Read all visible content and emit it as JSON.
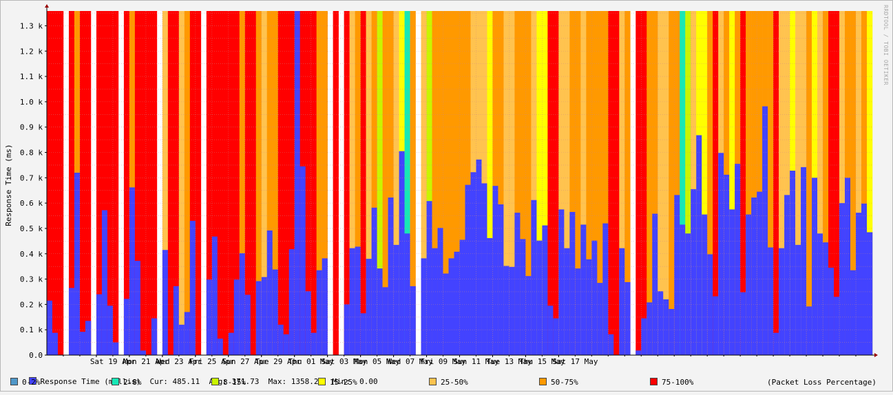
{
  "chart_data": {
    "type": "bar",
    "ylabel": "Response Time (ms)",
    "ylim": [
      0,
      1358.26
    ],
    "y_ticks": [
      "0.0",
      "0.1 k",
      "0.2 k",
      "0.3 k",
      "0.4 k",
      "0.5 k",
      "0.6 k",
      "0.7 k",
      "0.8 k",
      "0.9 k",
      "1.0 k",
      "1.1 k",
      "1.2 k",
      "1.3 k"
    ],
    "x_ticks": [
      "Sat 19 Apr",
      "Mon 21 Apr",
      "Wed 23 Apr",
      "Fri 25 Apr",
      "Sun 27 Apr",
      "Tue 29 Apr",
      "Thu 01 May",
      "Sat 03 May",
      "Mon 05 May",
      "Wed 07 May",
      "Fri 09 May",
      "Sun 11 May",
      "Tue 13 May",
      "Thu 15 May",
      "Sat 17 May"
    ],
    "grid": true,
    "side_label": "RRDTOOL / TOBI OETIKER",
    "loss_colors": {
      "0-2%": "#4f97c8",
      "2-8%": "#17e8b6",
      "8-15%": "#c9f500",
      "15-25%": "#ffff00",
      "25-50%": "#ffc34f",
      "50-75%": "#ff9900",
      "75-100%": "#ff0000"
    },
    "response_color": "#4343ff",
    "bin_hours": 8,
    "bins": [
      {
        "rt": 215,
        "loss": "75-100%"
      },
      {
        "rt": 88,
        "loss": "75-100%"
      },
      {
        "rt": 0,
        "loss": "75-100%"
      },
      {
        "rt": null,
        "loss": null
      },
      {
        "rt": 265,
        "loss": "75-100%"
      },
      {
        "rt": 720,
        "loss": "50-75%"
      },
      {
        "rt": 92,
        "loss": "75-100%"
      },
      {
        "rt": 135,
        "loss": "75-100%"
      },
      {
        "rt": null,
        "loss": null
      },
      {
        "rt": 240,
        "loss": "75-100%"
      },
      {
        "rt": 572,
        "loss": "75-100%"
      },
      {
        "rt": 195,
        "loss": "75-100%"
      },
      {
        "rt": 50,
        "loss": "75-100%"
      },
      {
        "rt": null,
        "loss": null
      },
      {
        "rt": 222,
        "loss": "75-100%"
      },
      {
        "rt": 662,
        "loss": "50-75%"
      },
      {
        "rt": 372,
        "loss": "75-100%"
      },
      {
        "rt": 18,
        "loss": "75-100%"
      },
      {
        "rt": 0,
        "loss": "75-100%"
      },
      {
        "rt": 145,
        "loss": "75-100%"
      },
      {
        "rt": null,
        "loss": null
      },
      {
        "rt": 415,
        "loss": "25-50%"
      },
      {
        "rt": 0,
        "loss": "75-100%"
      },
      {
        "rt": 272,
        "loss": "75-100%"
      },
      {
        "rt": 120,
        "loss": "25-50%"
      },
      {
        "rt": 170,
        "loss": "50-75%"
      },
      {
        "rt": 530,
        "loss": "75-100%"
      },
      {
        "rt": 0,
        "loss": "75-100%"
      },
      {
        "rt": null,
        "loss": null
      },
      {
        "rt": 298,
        "loss": "75-100%"
      },
      {
        "rt": 468,
        "loss": "75-100%"
      },
      {
        "rt": 65,
        "loss": "75-100%"
      },
      {
        "rt": 0,
        "loss": "75-100%"
      },
      {
        "rt": 88,
        "loss": "75-100%"
      },
      {
        "rt": 298,
        "loss": "75-100%"
      },
      {
        "rt": 402,
        "loss": "50-75%"
      },
      {
        "rt": 238,
        "loss": "75-100%"
      },
      {
        "rt": 0,
        "loss": "75-100%"
      },
      {
        "rt": 292,
        "loss": "50-75%"
      },
      {
        "rt": 308,
        "loss": "25-50%"
      },
      {
        "rt": 492,
        "loss": "50-75%"
      },
      {
        "rt": 338,
        "loss": "50-75%"
      },
      {
        "rt": 120,
        "loss": "75-100%"
      },
      {
        "rt": 82,
        "loss": "75-100%"
      },
      {
        "rt": 418,
        "loss": "75-100%"
      },
      {
        "rt": 1358,
        "loss": "75-100%"
      },
      {
        "rt": 745,
        "loss": "75-100%"
      },
      {
        "rt": 252,
        "loss": "75-100%"
      },
      {
        "rt": 88,
        "loss": "75-100%"
      },
      {
        "rt": 335,
        "loss": "50-75%"
      },
      {
        "rt": 382,
        "loss": "50-75%"
      },
      {
        "rt": null,
        "loss": null
      },
      {
        "rt": 0,
        "loss": "75-100%"
      },
      {
        "rt": null,
        "loss": null
      },
      {
        "rt": 200,
        "loss": "75-100%"
      },
      {
        "rt": 422,
        "loss": "25-50%"
      },
      {
        "rt": 428,
        "loss": "50-75%"
      },
      {
        "rt": 165,
        "loss": "75-100%"
      },
      {
        "rt": 380,
        "loss": "25-50%"
      },
      {
        "rt": 582,
        "loss": "50-75%"
      },
      {
        "rt": 342,
        "loss": "8-15%"
      },
      {
        "rt": 268,
        "loss": "50-75%"
      },
      {
        "rt": 622,
        "loss": "50-75%"
      },
      {
        "rt": 435,
        "loss": "25-50%"
      },
      {
        "rt": 805,
        "loss": "15-25%"
      },
      {
        "rt": 480,
        "loss": "2-8%"
      },
      {
        "rt": 272,
        "loss": "50-75%"
      },
      {
        "rt": null,
        "loss": null
      },
      {
        "rt": 382,
        "loss": "25-50%"
      },
      {
        "rt": 608,
        "loss": "8-15%"
      },
      {
        "rt": 422,
        "loss": "50-75%"
      },
      {
        "rt": 502,
        "loss": "50-75%"
      },
      {
        "rt": 322,
        "loss": "50-75%"
      },
      {
        "rt": 382,
        "loss": "50-75%"
      },
      {
        "rt": 408,
        "loss": "50-75%"
      },
      {
        "rt": 455,
        "loss": "50-75%"
      },
      {
        "rt": 672,
        "loss": "50-75%"
      },
      {
        "rt": 722,
        "loss": "25-50%"
      },
      {
        "rt": 772,
        "loss": "25-50%"
      },
      {
        "rt": 678,
        "loss": "25-50%"
      },
      {
        "rt": 462,
        "loss": "15-25%"
      },
      {
        "rt": 668,
        "loss": "50-75%"
      },
      {
        "rt": 595,
        "loss": "50-75%"
      },
      {
        "rt": 352,
        "loss": "25-50%"
      },
      {
        "rt": 348,
        "loss": "25-50%"
      },
      {
        "rt": 562,
        "loss": "50-75%"
      },
      {
        "rt": 458,
        "loss": "50-75%"
      },
      {
        "rt": 312,
        "loss": "50-75%"
      },
      {
        "rt": 612,
        "loss": "25-50%"
      },
      {
        "rt": 452,
        "loss": "15-25%"
      },
      {
        "rt": 512,
        "loss": "15-25%"
      },
      {
        "rt": 195,
        "loss": "75-100%"
      },
      {
        "rt": 145,
        "loss": "75-100%"
      },
      {
        "rt": 575,
        "loss": "25-50%"
      },
      {
        "rt": 422,
        "loss": "25-50%"
      },
      {
        "rt": 565,
        "loss": "50-75%"
      },
      {
        "rt": 342,
        "loss": "50-75%"
      },
      {
        "rt": 515,
        "loss": "25-50%"
      },
      {
        "rt": 378,
        "loss": "50-75%"
      },
      {
        "rt": 452,
        "loss": "50-75%"
      },
      {
        "rt": 285,
        "loss": "50-75%"
      },
      {
        "rt": 520,
        "loss": "50-75%"
      },
      {
        "rt": 82,
        "loss": "75-100%"
      },
      {
        "rt": 0,
        "loss": "75-100%"
      },
      {
        "rt": 422,
        "loss": "25-50%"
      },
      {
        "rt": 288,
        "loss": "50-75%"
      },
      {
        "rt": null,
        "loss": null
      },
      {
        "rt": 18,
        "loss": "75-100%"
      },
      {
        "rt": 145,
        "loss": "75-100%"
      },
      {
        "rt": 208,
        "loss": "50-75%"
      },
      {
        "rt": 558,
        "loss": "50-75%"
      },
      {
        "rt": 252,
        "loss": "25-50%"
      },
      {
        "rt": 220,
        "loss": "25-50%"
      },
      {
        "rt": 182,
        "loss": "50-75%"
      },
      {
        "rt": 632,
        "loss": "50-75%"
      },
      {
        "rt": 515,
        "loss": "2-8%"
      },
      {
        "rt": 480,
        "loss": "8-15%"
      },
      {
        "rt": 655,
        "loss": "25-50%"
      },
      {
        "rt": 868,
        "loss": "15-25%"
      },
      {
        "rt": 555,
        "loss": "15-25%"
      },
      {
        "rt": 398,
        "loss": "50-75%"
      },
      {
        "rt": 232,
        "loss": "75-100%"
      },
      {
        "rt": 798,
        "loss": "25-50%"
      },
      {
        "rt": 712,
        "loss": "50-75%"
      },
      {
        "rt": 575,
        "loss": "15-25%"
      },
      {
        "rt": 755,
        "loss": "50-75%"
      },
      {
        "rt": 248,
        "loss": "75-100%"
      },
      {
        "rt": 555,
        "loss": "50-75%"
      },
      {
        "rt": 622,
        "loss": "50-75%"
      },
      {
        "rt": 645,
        "loss": "50-75%"
      },
      {
        "rt": 982,
        "loss": "50-75%"
      },
      {
        "rt": 425,
        "loss": "50-75%"
      },
      {
        "rt": 88,
        "loss": "75-100%"
      },
      {
        "rt": 422,
        "loss": "25-50%"
      },
      {
        "rt": 632,
        "loss": "25-50%"
      },
      {
        "rt": 728,
        "loss": "15-25%"
      },
      {
        "rt": 435,
        "loss": "25-50%"
      },
      {
        "rt": 742,
        "loss": "25-50%"
      },
      {
        "rt": 192,
        "loss": "50-75%"
      },
      {
        "rt": 700,
        "loss": "15-25%"
      },
      {
        "rt": 480,
        "loss": "25-50%"
      },
      {
        "rt": 445,
        "loss": "50-75%"
      },
      {
        "rt": 345,
        "loss": "75-100%"
      },
      {
        "rt": 230,
        "loss": "75-100%"
      },
      {
        "rt": 600,
        "loss": "25-50%"
      },
      {
        "rt": 700,
        "loss": "50-75%"
      },
      {
        "rt": 335,
        "loss": "50-75%"
      },
      {
        "rt": 562,
        "loss": "25-50%"
      },
      {
        "rt": 598,
        "loss": "50-75%"
      },
      {
        "rt": 485,
        "loss": "15-25%"
      }
    ]
  },
  "legend": {
    "response_line": "Response Time (millis)  Cur: 485.11  Avg: 371.73  Max: 1358.26  Min:  0.00",
    "items": [
      "0-2%",
      "2-8%",
      "8-15%",
      "15-25%",
      "25-50%",
      "50-75%",
      "75-100%"
    ],
    "note": "(Packet Loss Percentage)"
  }
}
